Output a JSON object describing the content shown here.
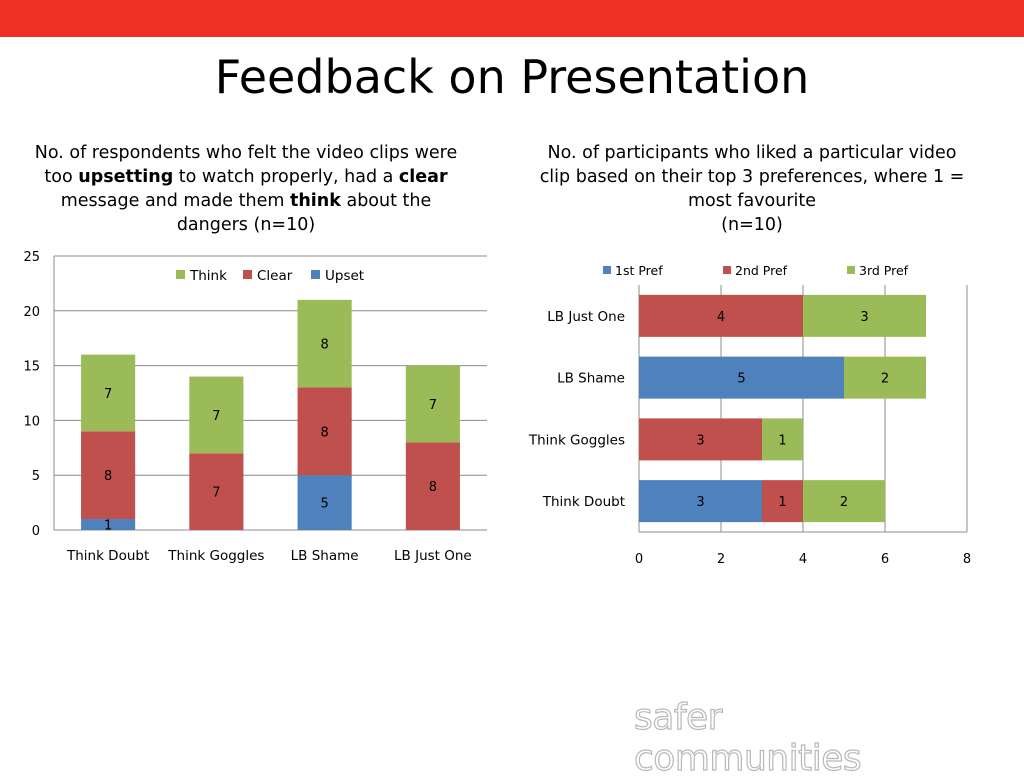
{
  "slide": {
    "title": "Feedback on Presentation",
    "brand_logo_text": "safer communities",
    "accent_color": "#ee3124"
  },
  "left_caption": {
    "part1": "No. of respondents who felt the video clips were too ",
    "bold1": "upsetting",
    "part2": " to watch properly, had a ",
    "bold2": "clear",
    "part3": " message and made them ",
    "bold3": "think",
    "part4": " about the dangers (n=10)"
  },
  "right_caption": {
    "line1": "No. of participants who liked a particular video clip based on their top 3 preferences, where 1 = most favourite",
    "line2": "(n=10)"
  },
  "chart_data": [
    {
      "type": "bar",
      "orientation": "vertical",
      "stacked": true,
      "categories": [
        "Think Doubt",
        "Think Goggles",
        "LB Shame",
        "LB Just One"
      ],
      "series": [
        {
          "name": "Upset",
          "color": "#4f81bd",
          "values": [
            1,
            0,
            5,
            0
          ]
        },
        {
          "name": "Clear",
          "color": "#c0504d",
          "values": [
            8,
            7,
            8,
            8
          ]
        },
        {
          "name": "Think",
          "color": "#9bbb59",
          "values": [
            7,
            7,
            8,
            7
          ]
        }
      ],
      "ylim": [
        0,
        25
      ],
      "yticks": [
        0,
        5,
        10,
        15,
        20,
        25
      ],
      "grid": true,
      "legend": "top",
      "legend_order": [
        "Think",
        "Clear",
        "Upset"
      ]
    },
    {
      "type": "bar",
      "orientation": "horizontal",
      "stacked": true,
      "categories": [
        "Think Doubt",
        "Think Goggles",
        "LB Shame",
        "LB Just One"
      ],
      "series": [
        {
          "name": "1st Pref",
          "color": "#4f81bd",
          "values": [
            3,
            0,
            5,
            0
          ]
        },
        {
          "name": "2nd Pref",
          "color": "#c0504d",
          "values": [
            1,
            3,
            0,
            4
          ]
        },
        {
          "name": "3rd Pref",
          "color": "#9bbb59",
          "values": [
            2,
            1,
            2,
            3
          ]
        }
      ],
      "xlim": [
        0,
        8
      ],
      "xticks": [
        0,
        2,
        4,
        6,
        8
      ],
      "grid": true,
      "legend": "top"
    }
  ]
}
